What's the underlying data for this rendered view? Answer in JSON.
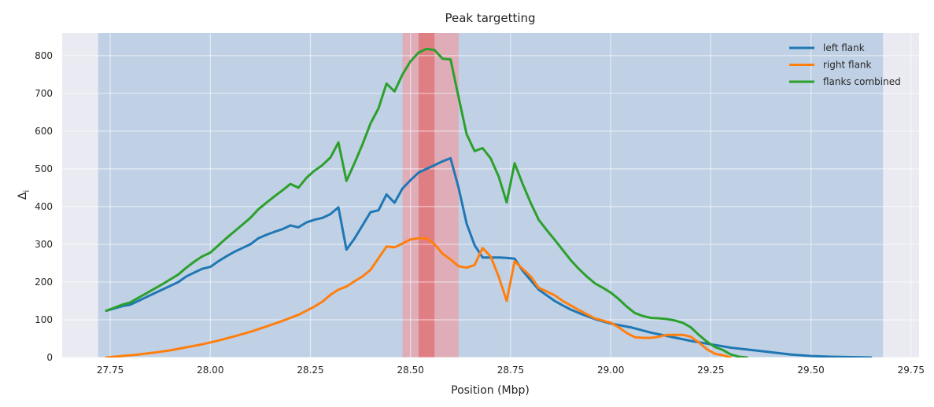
{
  "chart_data": {
    "type": "line",
    "title": "Peak targetting",
    "xlabel": "Position (Mbp)",
    "ylabel": "Δ",
    "ylabel_sub": "i",
    "xlim": [
      27.63,
      29.77
    ],
    "ylim": [
      0,
      860
    ],
    "xticks": [
      27.75,
      28.0,
      28.25,
      28.5,
      28.75,
      29.0,
      29.25,
      29.5,
      29.75
    ],
    "xtick_labels": [
      "27.75",
      "28.00",
      "28.25",
      "28.50",
      "28.75",
      "29.00",
      "29.25",
      "29.50",
      "29.75"
    ],
    "yticks": [
      0,
      100,
      200,
      300,
      400,
      500,
      600,
      700,
      800
    ],
    "ytick_labels": [
      "0",
      "100",
      "200",
      "300",
      "400",
      "500",
      "600",
      "700",
      "800"
    ],
    "grid": true,
    "legend_position": "top-right",
    "background": "#EAEAF2",
    "bands": [
      {
        "x0": 27.72,
        "x1": 29.68,
        "color": "#9DBBDA",
        "opacity": 0.55
      },
      {
        "x0": 28.48,
        "x1": 28.62,
        "color": "#E8A0A8",
        "opacity": 0.75
      },
      {
        "x0": 28.52,
        "x1": 28.56,
        "color": "#E06060",
        "opacity": 0.6
      }
    ],
    "series": [
      {
        "name": "left flank",
        "color": "#1F77B4",
        "x": [
          27.74,
          27.76,
          27.78,
          27.8,
          27.82,
          27.84,
          27.86,
          27.88,
          27.9,
          27.92,
          27.94,
          27.96,
          27.98,
          28.0,
          28.02,
          28.04,
          28.06,
          28.08,
          28.1,
          28.12,
          28.14,
          28.16,
          28.18,
          28.2,
          28.22,
          28.24,
          28.26,
          28.28,
          28.3,
          28.32,
          28.34,
          28.36,
          28.38,
          28.4,
          28.42,
          28.44,
          28.46,
          28.48,
          28.5,
          28.52,
          28.54,
          28.56,
          28.58,
          28.6,
          28.62,
          28.64,
          28.66,
          28.68,
          28.7,
          28.72,
          28.74,
          28.76,
          28.78,
          28.8,
          28.82,
          28.84,
          28.86,
          28.88,
          28.9,
          28.92,
          28.94,
          28.96,
          28.98,
          29.0,
          29.05,
          29.1,
          29.15,
          29.2,
          29.25,
          29.3,
          29.35,
          29.4,
          29.45,
          29.5,
          29.55,
          29.6,
          29.65
        ],
        "y": [
          124,
          130,
          136,
          140,
          150,
          160,
          170,
          180,
          190,
          200,
          215,
          225,
          235,
          240,
          255,
          268,
          280,
          290,
          300,
          316,
          325,
          333,
          340,
          350,
          345,
          358,
          365,
          370,
          380,
          398,
          286,
          315,
          350,
          385,
          390,
          432,
          410,
          448,
          470,
          490,
          500,
          510,
          520,
          528,
          450,
          355,
          298,
          265,
          265,
          265,
          264,
          262,
          230,
          205,
          180,
          165,
          150,
          138,
          127,
          118,
          110,
          102,
          96,
          90,
          80,
          66,
          55,
          44,
          35,
          26,
          20,
          14,
          8,
          4,
          2,
          1,
          0
        ]
      },
      {
        "name": "right flank",
        "color": "#FF7F0E",
        "x": [
          27.74,
          27.78,
          27.82,
          27.86,
          27.9,
          27.94,
          27.98,
          28.02,
          28.06,
          28.1,
          28.14,
          28.18,
          28.22,
          28.26,
          28.28,
          28.3,
          28.32,
          28.34,
          28.36,
          28.38,
          28.4,
          28.42,
          28.44,
          28.46,
          28.48,
          28.5,
          28.52,
          28.54,
          28.56,
          28.58,
          28.6,
          28.62,
          28.64,
          28.66,
          28.68,
          28.7,
          28.72,
          28.74,
          28.76,
          28.78,
          28.8,
          28.82,
          28.84,
          28.86,
          28.88,
          28.9,
          28.92,
          28.94,
          28.96,
          29.0,
          29.02,
          29.04,
          29.06,
          29.08,
          29.1,
          29.12,
          29.14,
          29.16,
          29.18,
          29.2,
          29.22,
          29.24,
          29.26,
          29.28,
          29.3
        ],
        "y": [
          0,
          4,
          8,
          13,
          19,
          27,
          35,
          45,
          56,
          68,
          82,
          97,
          113,
          135,
          148,
          166,
          180,
          188,
          202,
          215,
          232,
          263,
          294,
          292,
          302,
          313,
          316,
          316,
          300,
          275,
          260,
          242,
          238,
          245,
          290,
          268,
          215,
          150,
          255,
          235,
          215,
          185,
          175,
          165,
          150,
          138,
          126,
          115,
          104,
          92,
          80,
          65,
          54,
          52,
          52,
          55,
          60,
          60,
          60,
          55,
          40,
          22,
          10,
          6,
          0
        ]
      },
      {
        "name": "flanks combined",
        "color": "#2CA02C",
        "x": [
          27.74,
          27.76,
          27.78,
          27.8,
          27.82,
          27.84,
          27.86,
          27.88,
          27.9,
          27.92,
          27.94,
          27.96,
          27.98,
          28.0,
          28.02,
          28.04,
          28.06,
          28.08,
          28.1,
          28.12,
          28.14,
          28.16,
          28.18,
          28.2,
          28.22,
          28.24,
          28.26,
          28.28,
          28.3,
          28.32,
          28.34,
          28.36,
          28.38,
          28.4,
          28.42,
          28.44,
          28.46,
          28.48,
          28.5,
          28.52,
          28.54,
          28.56,
          28.58,
          28.6,
          28.62,
          28.64,
          28.66,
          28.68,
          28.7,
          28.72,
          28.74,
          28.76,
          28.78,
          28.8,
          28.82,
          28.84,
          28.86,
          28.88,
          28.9,
          28.92,
          28.94,
          28.96,
          28.98,
          29.0,
          29.02,
          29.04,
          29.06,
          29.08,
          29.1,
          29.12,
          29.14,
          29.16,
          29.18,
          29.2,
          29.22,
          29.24,
          29.26,
          29.28,
          29.3,
          29.32,
          29.34
        ],
        "y": [
          124,
          132,
          140,
          146,
          158,
          170,
          182,
          194,
          207,
          220,
          238,
          254,
          268,
          278,
          297,
          316,
          334,
          352,
          370,
          393,
          410,
          427,
          443,
          460,
          450,
          476,
          495,
          510,
          530,
          570,
          468,
          515,
          565,
          620,
          660,
          726,
          705,
          750,
          785,
          808,
          818,
          815,
          792,
          790,
          690,
          592,
          547,
          555,
          528,
          480,
          411,
          515,
          460,
          410,
          365,
          338,
          312,
          285,
          258,
          235,
          215,
          197,
          185,
          172,
          155,
          135,
          118,
          110,
          105,
          104,
          102,
          98,
          92,
          80,
          60,
          42,
          28,
          20,
          8,
          2,
          0
        ]
      }
    ]
  }
}
